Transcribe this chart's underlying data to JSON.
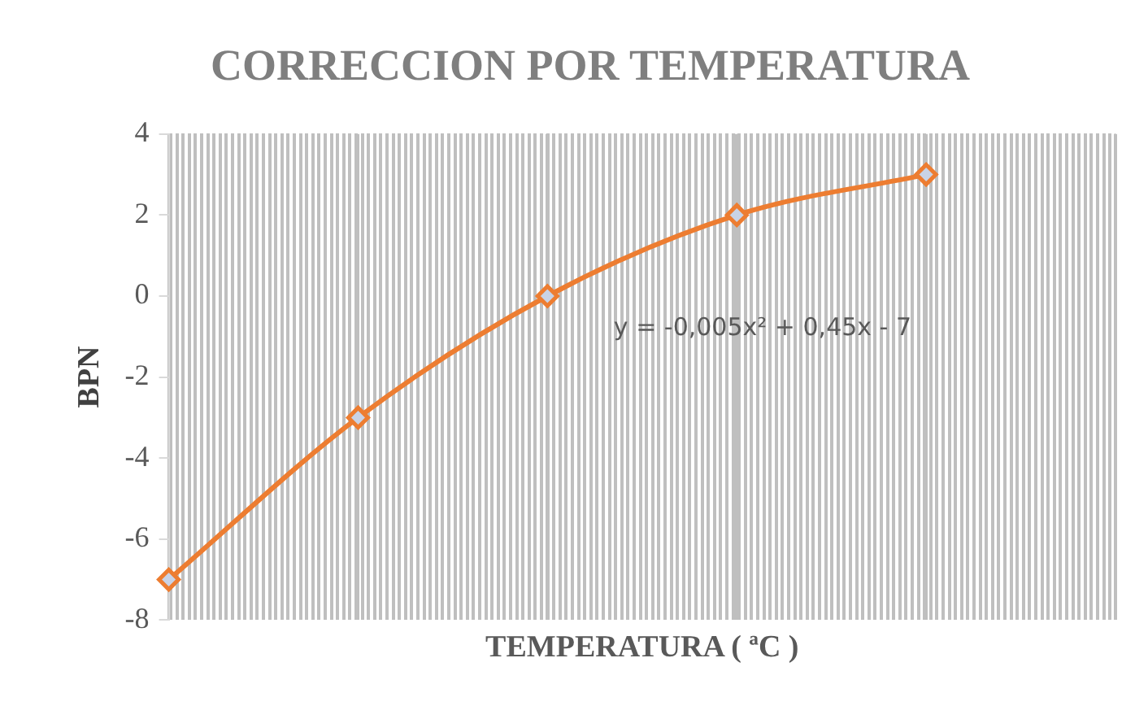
{
  "chart_data": {
    "type": "line",
    "title": "CORRECCION POR TEMPERATURA",
    "xlabel": "TEMPERATURA ( ªC )",
    "ylabel": "BPN",
    "categories": [
      null,
      null,
      null,
      null,
      null,
      null
    ],
    "series": [
      {
        "color": "#ed7d31",
        "values": [
          -7,
          -3,
          0,
          2,
          3,
          null
        ]
      }
    ],
    "annotations": [
      "y = -0,005x² + 0,45x - 7"
    ],
    "ylim": [
      -8,
      4
    ],
    "yticks": [
      -8,
      -6,
      -4,
      -2,
      0,
      2,
      4
    ],
    "grid": "x",
    "legend": false,
    "tick_labels": "y",
    "marker": "diamond",
    "line_style": "solid"
  }
}
